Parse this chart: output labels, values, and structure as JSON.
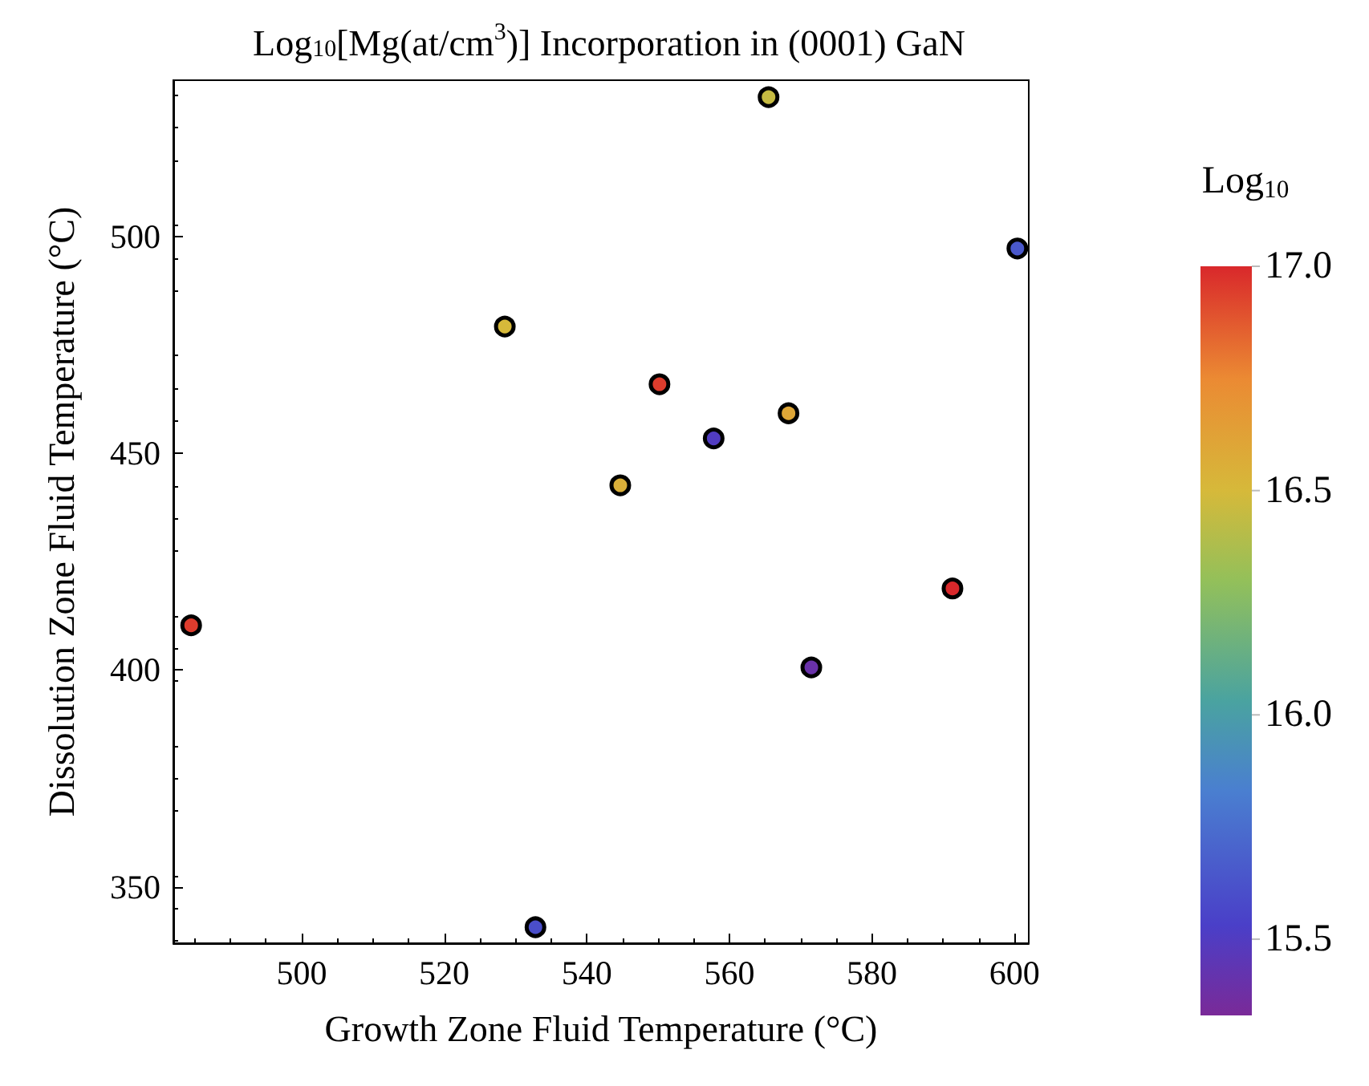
{
  "chart_data": {
    "type": "scatter",
    "title": "Log$_{10}$[Mg(at/cm$^{3}$)] Incorporation in (0001) GaN",
    "xlabel": "Growth Zone Fluid Temperature (°C)",
    "ylabel": "Dissolution Zone Fluid Temperature (°C)",
    "clabel": "Log$_{10}$",
    "x": [
      484.5,
      532.8,
      565.5,
      600.4,
      528.5,
      550.2,
      568.3,
      557.8,
      544.7,
      591.3,
      571.5
    ],
    "values": [
      410.3,
      340.7,
      532.1,
      497.2,
      479.2,
      465.9,
      459.2,
      453.4,
      442.6,
      418.8,
      400.6
    ],
    "cvalues": [
      16.95,
      15.6,
      16.45,
      15.65,
      16.5,
      16.95,
      16.6,
      15.5,
      16.55,
      17.0,
      15.4
    ],
    "color": "#000000",
    "marker": "circle",
    "xlim": [
      482,
      602
    ],
    "xticks": [
      500,
      520,
      540,
      560,
      580,
      600
    ],
    "ylim": [
      337,
      536
    ],
    "yticks": [
      350,
      400,
      450,
      500
    ],
    "clim": [
      15.33,
      17.0
    ],
    "cticks": [
      {
        "value": 15.5,
        "label": "15.5"
      },
      {
        "value": 16.0,
        "label": "16.0"
      },
      {
        "value": 16.5,
        "label": "16.5"
      },
      {
        "value": 17.0,
        "label": "17.0"
      }
    ],
    "grid": false
  }
}
